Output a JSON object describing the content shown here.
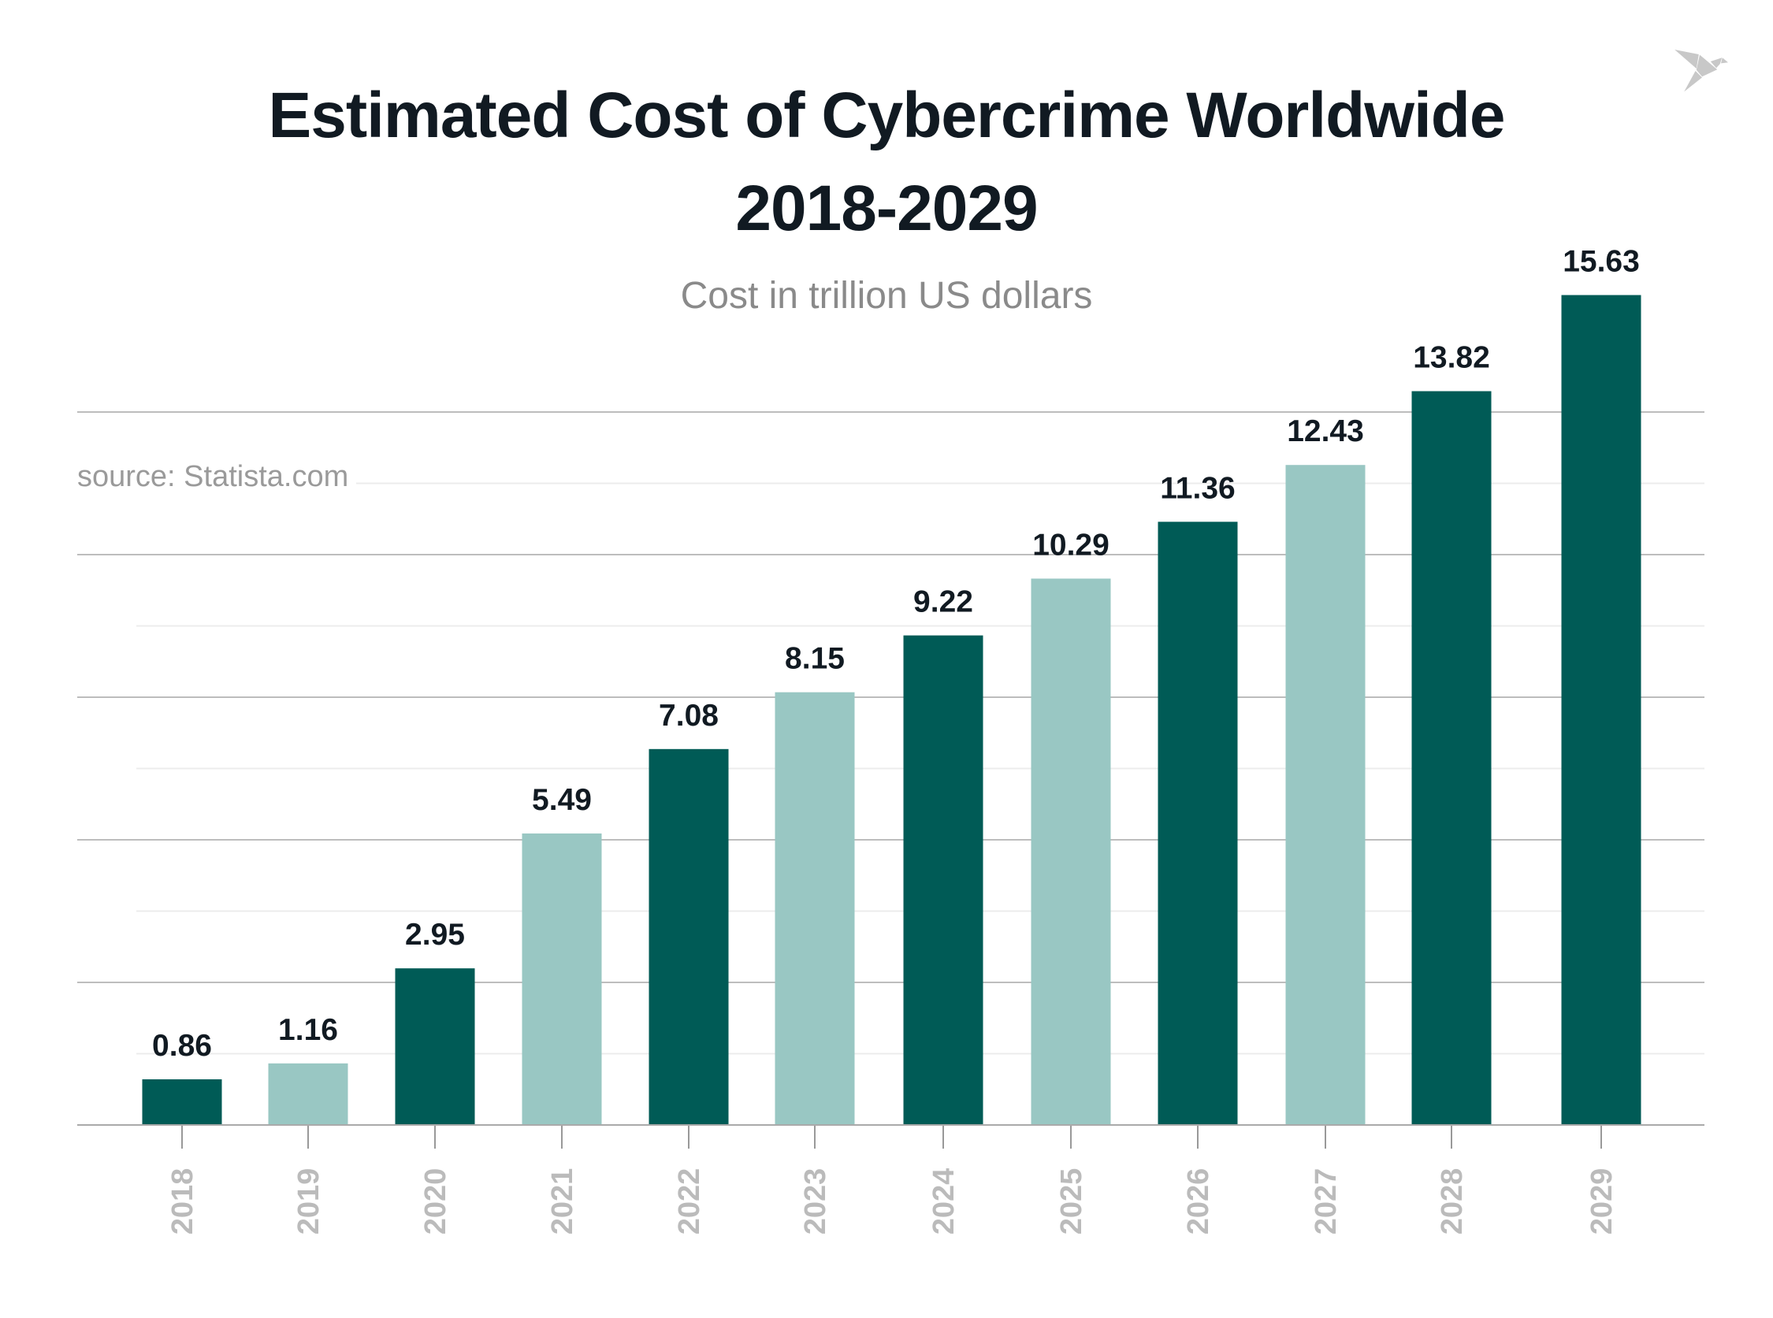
{
  "chart_data": {
    "type": "bar",
    "title": "Estimated Cost of Cybercrime Worldwide",
    "title_line2": "2018-2029",
    "subtitle": "Cost in trillion US dollars",
    "source": "source: Statista.com",
    "categories": [
      "2018",
      "2019",
      "2020",
      "2021",
      "2022",
      "2023",
      "2024",
      "2025",
      "2026",
      "2027",
      "2028",
      "2029"
    ],
    "values": [
      0.86,
      1.16,
      2.95,
      5.49,
      7.08,
      8.15,
      9.22,
      10.29,
      11.36,
      12.43,
      13.82,
      15.63
    ],
    "bar_colors": [
      "#005b56",
      "#99c7c3",
      "#005b56",
      "#99c7c3",
      "#005b56",
      "#99c7c3",
      "#005b56",
      "#99c7c3",
      "#005b56",
      "#99c7c3",
      "#005b56",
      "#005b56"
    ],
    "xlabel": "",
    "ylabel": "",
    "grid": true,
    "y_tick_labels": false,
    "label_color": "#111a22",
    "year_label_color": "#bbbbbb"
  },
  "logo": {
    "icon": "origami-bird-icon",
    "color": "#c8c8c8"
  }
}
